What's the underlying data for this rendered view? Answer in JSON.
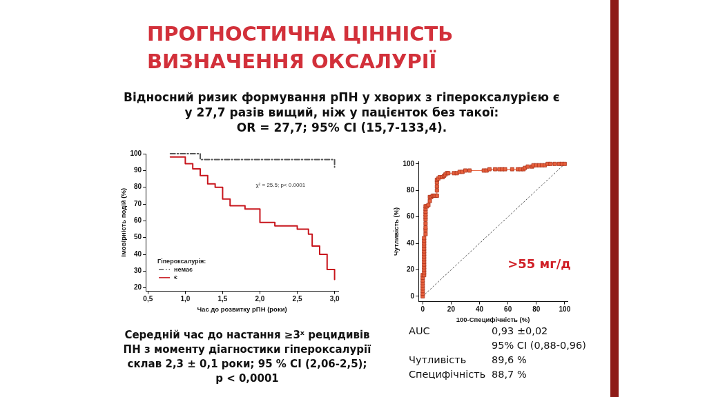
{
  "chart_data": [
    {
      "type": "step",
      "title": "ПРОГНОСТИЧНА ЦІННІСТЬ\nВИЗНАЧЕННЯ ОКСАЛУРІЇ",
      "subtitle": "Відносний ризик формування рПН у хворих з гіпероксалурією є\nу 27,7 разів вищий, ніж у пацієнток без такої:\nOR = 27,7; 95% CI (15,7-133,4).",
      "xlabel": "Час до розвитку рПН (роки)",
      "ylabel": "Імовірність подій (%)",
      "legend_title": "Гіпероксалурія:",
      "legend": "bottom left",
      "grid": false,
      "marker": "none",
      "line_style": "solid",
      "xlim": [
        0.47,
        3.05
      ],
      "ylim": [
        18,
        100
      ],
      "xticks": [
        {
          "value": 0.5,
          "label": "0,5"
        },
        {
          "value": 1.0,
          "label": "1,0"
        },
        {
          "value": 1.5,
          "label": "1,5"
        },
        {
          "value": 2.0,
          "label": "2,0"
        },
        {
          "value": 2.5,
          "label": "2,5"
        },
        {
          "value": 3.0,
          "label": "3,0"
        }
      ],
      "yticks": [
        20,
        30,
        40,
        50,
        60,
        70,
        80,
        90,
        100
      ],
      "series": [
        {
          "name": "немає",
          "color": "#555555",
          "line_style": "dashed",
          "x": [
            0.8,
            1.2,
            3.0
          ],
          "values": [
            100,
            96.5,
            92
          ]
        },
        {
          "name": "є",
          "color": "#c8161d",
          "x": [
            0.8,
            1.0,
            1.1,
            1.2,
            1.3,
            1.4,
            1.5,
            1.6,
            1.8,
            2.0,
            2.2,
            2.5,
            2.65,
            2.7,
            2.8,
            2.9,
            3.0
          ],
          "values": [
            98,
            94,
            91,
            87,
            82,
            80,
            73,
            69,
            67,
            59,
            57,
            55,
            52,
            45,
            40,
            31,
            25
          ]
        }
      ],
      "annotations": [
        "χ² = 25.5; p< 0.0001",
        "Середній час до настання ≥3ˣ рецидивів ПН з моменту діагностики гіпероксалурії склав 2,3 ± 0,1 роки; 95 % CI (2,06-2,5); p < 0,0001"
      ]
    },
    {
      "type": "line",
      "xlabel": "100-Специфічність (%)",
      "ylabel": "Чутливість (%)",
      "grid": false,
      "marker": "square",
      "line_style": "solid",
      "xlim": [
        -3,
        102
      ],
      "ylim": [
        -4,
        102
      ],
      "xticks": [
        0,
        20,
        40,
        60,
        80,
        100
      ],
      "yticks": [
        0,
        20,
        40,
        60,
        80,
        100
      ],
      "series": [
        {
          "color": "#e8603c",
          "x": [
            0,
            0,
            0,
            0,
            0,
            0,
            0,
            0,
            0,
            1,
            1,
            1,
            1,
            1,
            1,
            1,
            1,
            1,
            1,
            1,
            1,
            1,
            1,
            1,
            2,
            2,
            2,
            2,
            2,
            2,
            2,
            2,
            2,
            2,
            3,
            4,
            5,
            5,
            6,
            7,
            8,
            9,
            10,
            10,
            10,
            10,
            10,
            11,
            12,
            14,
            15,
            16,
            17,
            18,
            22,
            24,
            26,
            28,
            30,
            33,
            43,
            45,
            47,
            51,
            54,
            56,
            58,
            63,
            67,
            69,
            71,
            72,
            74,
            77,
            78,
            80,
            82,
            84,
            86,
            88,
            90,
            93,
            96,
            98,
            100
          ],
          "values": [
            0,
            2,
            4,
            6,
            8,
            10,
            12,
            14,
            16,
            16,
            18,
            20,
            22,
            24,
            26,
            28,
            30,
            32,
            34,
            36,
            38,
            40,
            42,
            44,
            47,
            50,
            52,
            55,
            58,
            60,
            62,
            64,
            66,
            68,
            68,
            69,
            72,
            75,
            75,
            76,
            76,
            76,
            76,
            80,
            83,
            86,
            88,
            89,
            90,
            90,
            91,
            92,
            93,
            93,
            93,
            93,
            94,
            94,
            95,
            95,
            95,
            95,
            96,
            96,
            96,
            96,
            96,
            96,
            96,
            96,
            96,
            97,
            98,
            98,
            99,
            99,
            99,
            99,
            99,
            100,
            100,
            100,
            100,
            100,
            100
          ]
        },
        {
          "type": "line",
          "color": "#555555",
          "marker": "none",
          "line_style": "dotted",
          "x": [
            0,
            100
          ],
          "values": [
            0,
            100
          ]
        }
      ],
      "annotations": [
        ">55 мг/д",
        "AUC",
        "0,93 ±0,02",
        "95% CI (0,88-0,96)",
        "Чутливість",
        "89,6 %",
        "Специфічність",
        "88,7 %"
      ]
    }
  ]
}
